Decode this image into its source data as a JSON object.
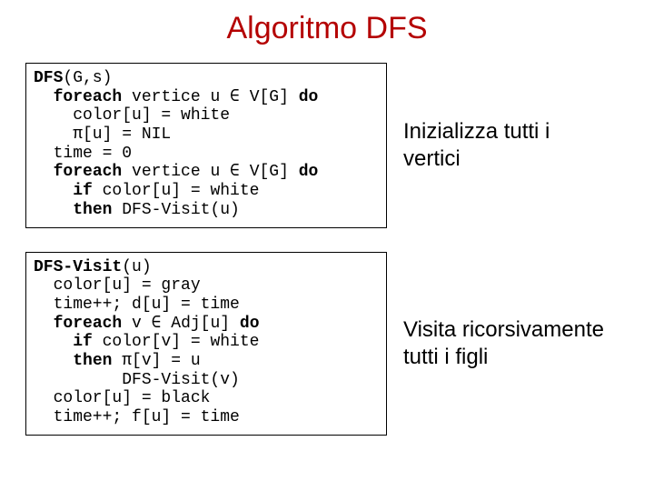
{
  "title": {
    "text": "Algoritmo DFS",
    "color": "#b40000",
    "fontsize": 34
  },
  "layout": {
    "row1": {
      "code_width": 398,
      "annot_width": 240
    },
    "row2": {
      "code_width": 398,
      "annot_width": 240
    },
    "box": {
      "border_color": "#000000",
      "background_color": "#ffffff"
    },
    "code": {
      "fontsize": 18,
      "color": "#000000",
      "font_family": "Courier New"
    },
    "annot": {
      "fontsize": 24,
      "color": "#000000",
      "font_family": "Comic Sans MS"
    }
  },
  "box1": {
    "head": "DFS",
    "head_args": "(G,s)",
    "l1a": "  ",
    "l1b": "foreach",
    "l1c": " vertice u ∈ V[G] ",
    "l1d": "do",
    "l2": "    color[u] = white",
    "l3": "    π[u] = NIL",
    "l4": "  time = 0",
    "l5a": "  ",
    "l5b": "foreach",
    "l5c": " vertice u ∈ V[G] ",
    "l5d": "do",
    "l6a": "    ",
    "l6b": "if",
    "l6c": " color[u] = white",
    "l7a": "    ",
    "l7b": "then",
    "l7c": " DFS-Visit(u)"
  },
  "annot1": "Inizializza tutti i vertici",
  "box2": {
    "head": "DFS-Visit",
    "head_args": "(u)",
    "l1": "  color[u] = gray",
    "l2": "  time++; d[u] = time",
    "l3a": "  ",
    "l3b": "foreach",
    "l3c": " v ∈ Adj[u] ",
    "l3d": "do",
    "l4a": "    ",
    "l4b": "if",
    "l4c": " color[v] = white",
    "l5a": "    ",
    "l5b": "then",
    "l5c": " π[v] = u",
    "l6": "         DFS-Visit(v)",
    "l7": "  color[u] = black",
    "l8": "  time++; f[u] = time"
  },
  "annot2": "Visita ricorsivamente tutti i figli"
}
